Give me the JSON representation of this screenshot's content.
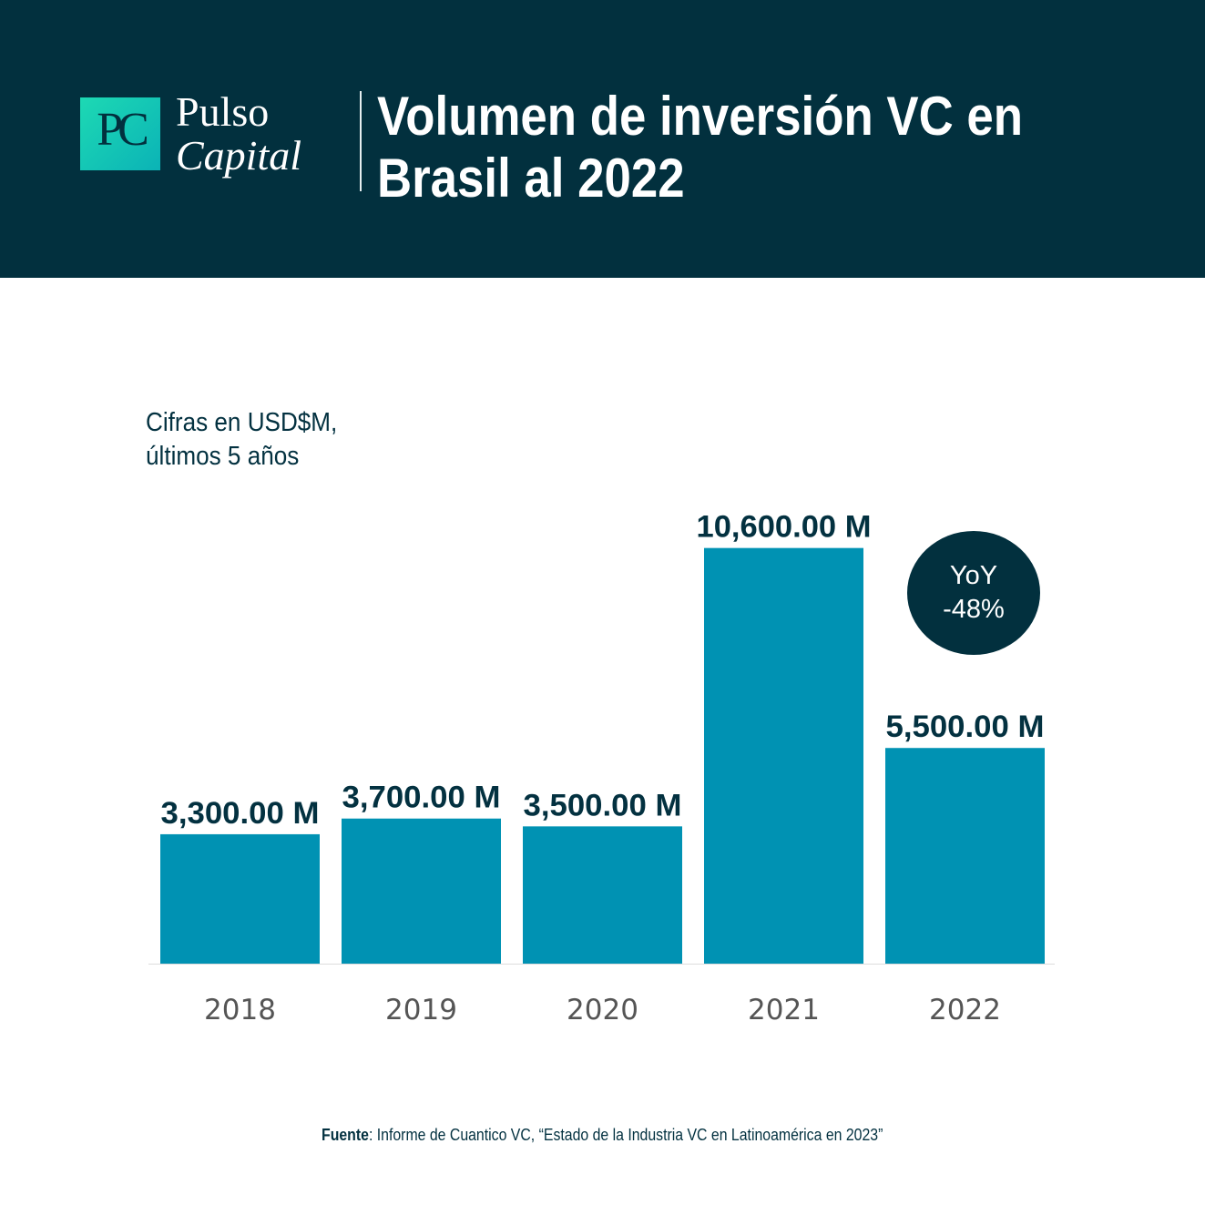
{
  "brand": {
    "monogram": "PC",
    "name_line1": "Pulso",
    "name_line2": "Capital"
  },
  "header": {
    "title_line1": "Volumen de inversión VC en",
    "title_line2": "Brasil al 2022"
  },
  "subtitle": {
    "line1": "Cifras en USD$M,",
    "line2": "últimos 5 años"
  },
  "badge": {
    "line1": "YoY",
    "line2": "-48%"
  },
  "source": {
    "label": "Fuente",
    "text": ": Informe de Cuantico VC, “Estado de la Industria VC en Latinoamérica en 2023”"
  },
  "colors": {
    "header_bg": "#02303e",
    "bar": "#0092b3",
    "label": "#033140",
    "tick": "#555555",
    "logo_accent": "#1dd9b4"
  },
  "chart_data": {
    "type": "bar",
    "categories": [
      "2018",
      "2019",
      "2020",
      "2021",
      "2022"
    ],
    "values": [
      3300,
      3700,
      3500,
      10600,
      5500
    ],
    "data_labels": [
      "3,300.00 M",
      "3,700.00 M",
      "3,500.00 M",
      "10,600.00 M",
      "5,500.00 M"
    ],
    "ylim": [
      0,
      11000
    ],
    "grid": false,
    "legend": "none"
  }
}
